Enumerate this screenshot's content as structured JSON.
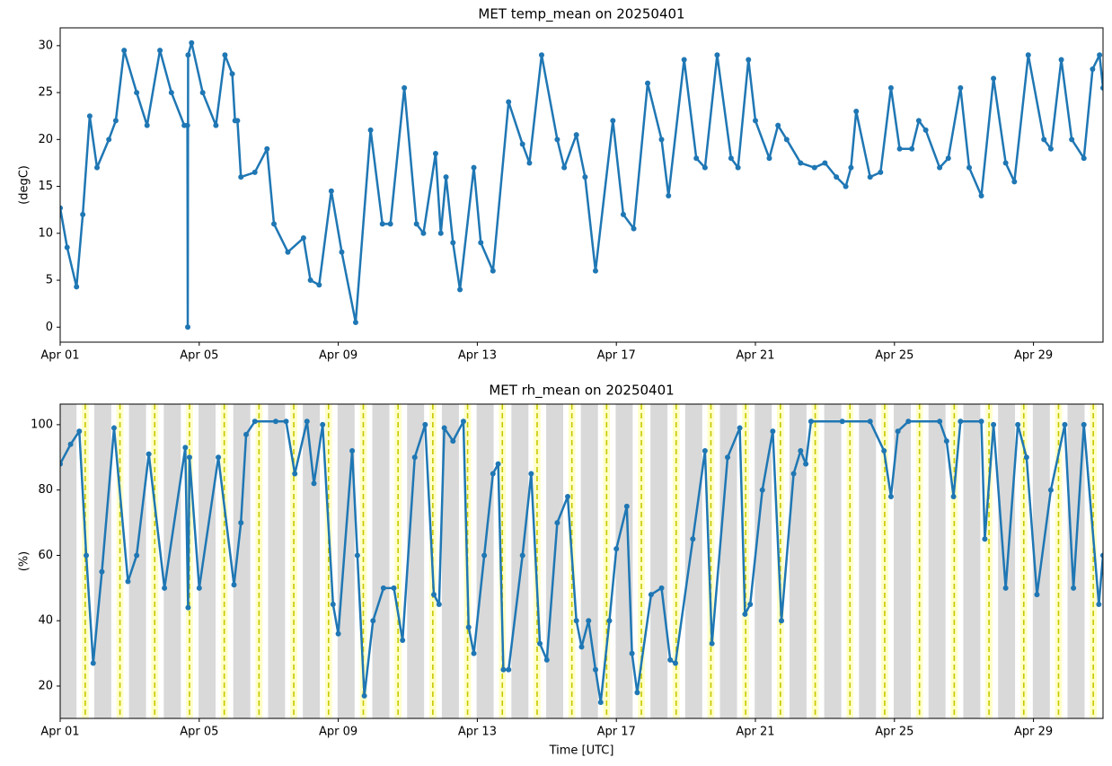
{
  "chart_data": [
    {
      "type": "line",
      "title": "MET temp_mean on 20250401",
      "ylabel": "(degC)",
      "color": "#1f77b4",
      "x": [
        0,
        0.2,
        0.47,
        0.65,
        0.85,
        1.06,
        1.4,
        1.6,
        1.84,
        2.2,
        2.5,
        2.87,
        3.2,
        3.57,
        3.66,
        3.67,
        3.68,
        3.78,
        4.1,
        4.48,
        4.74,
        4.95,
        5.03,
        5.1,
        5.2,
        5.6,
        5.95,
        6.15,
        6.55,
        7,
        7.2,
        7.45,
        7.8,
        8.1,
        8.5,
        8.93,
        9.27,
        9.5,
        9.9,
        10.25,
        10.45,
        10.8,
        10.95,
        11.1,
        11.3,
        11.5,
        11.9,
        12.1,
        12.45,
        12.9,
        13.3,
        13.5,
        13.85,
        14.3,
        14.5,
        14.85,
        15.1,
        15.4,
        15.9,
        16.2,
        16.5,
        16.9,
        17.3,
        17.5,
        17.95,
        18.3,
        18.55,
        18.9,
        19.3,
        19.5,
        19.8,
        20,
        20.4,
        20.65,
        20.9,
        21.3,
        21.7,
        22,
        22.33,
        22.6,
        22.75,
        22.9,
        23.3,
        23.6,
        23.9,
        24.15,
        24.5,
        24.7,
        24.9,
        25.3,
        25.55,
        25.9,
        26.15,
        26.5,
        26.85,
        27.2,
        27.45,
        27.85,
        28.3,
        28.5,
        28.8,
        29.1,
        29.45,
        29.7,
        29.9,
        30
      ],
      "values": [
        12.7,
        8.5,
        4.3,
        12,
        22.5,
        17,
        20,
        22,
        29.5,
        25,
        21.5,
        29.5,
        25,
        21.5,
        21.5,
        0,
        29,
        30.3,
        25,
        21.5,
        29,
        27,
        22,
        22,
        16,
        16.5,
        19,
        11,
        8,
        9.5,
        5,
        4.5,
        14.5,
        8,
        0.5,
        21,
        11,
        11,
        25.5,
        11,
        10,
        18.5,
        10,
        16,
        9,
        4,
        17,
        9,
        6,
        24,
        19.5,
        17.5,
        29,
        20,
        17,
        20.5,
        16,
        6,
        22,
        12,
        10.5,
        26,
        20,
        14,
        28.5,
        18,
        17,
        29,
        18,
        17,
        28.5,
        22,
        18,
        21.5,
        20,
        17.5,
        17,
        17.5,
        16,
        15,
        17,
        23,
        16,
        16.5,
        25.5,
        19,
        19,
        22,
        21,
        17,
        18,
        25.5,
        17,
        14,
        26.5,
        17.5,
        15.5,
        29,
        20,
        19,
        28.5,
        20,
        18,
        27.5,
        29,
        25.5
      ],
      "xlim": [
        0,
        30
      ],
      "xticks": [
        {
          "value": 0,
          "label": "Apr 01"
        },
        {
          "value": 4,
          "label": "Apr 05"
        },
        {
          "value": 8,
          "label": "Apr 09"
        },
        {
          "value": 12,
          "label": "Apr 13"
        },
        {
          "value": 16,
          "label": "Apr 17"
        },
        {
          "value": 20,
          "label": "Apr 21"
        },
        {
          "value": 24,
          "label": "Apr 25"
        },
        {
          "value": 28,
          "label": "Apr 29"
        }
      ],
      "ylim": [
        -1.6,
        31.9
      ],
      "yticks": [
        0,
        5,
        10,
        15,
        20,
        25,
        30
      ]
    },
    {
      "type": "line",
      "title": "MET rh_mean on 20250401",
      "ylabel": "(%)",
      "xlabel": "Time [UTC]",
      "color": "#1f77b4",
      "x": [
        0,
        0.3,
        0.55,
        0.75,
        0.95,
        1.2,
        1.55,
        1.95,
        2.2,
        2.55,
        3,
        3.6,
        3.68,
        3.72,
        4,
        4.55,
        5,
        5.2,
        5.35,
        5.6,
        6.2,
        6.5,
        6.75,
        7.1,
        7.3,
        7.55,
        7.85,
        8,
        8.4,
        8.55,
        8.75,
        9,
        9.3,
        9.6,
        9.85,
        10.2,
        10.5,
        10.75,
        10.9,
        11.05,
        11.3,
        11.6,
        11.75,
        11.9,
        12.2,
        12.45,
        12.6,
        12.75,
        12.9,
        13.3,
        13.55,
        13.8,
        14,
        14.3,
        14.6,
        14.85,
        15,
        15.2,
        15.4,
        15.55,
        15.8,
        16,
        16.3,
        16.45,
        16.6,
        17,
        17.3,
        17.55,
        17.7,
        18.2,
        18.55,
        18.75,
        19.2,
        19.55,
        19.7,
        19.85,
        20.2,
        20.5,
        20.75,
        21.1,
        21.3,
        21.45,
        21.6,
        22.5,
        23.3,
        23.7,
        23.9,
        24.1,
        24.4,
        25.3,
        25.5,
        25.7,
        25.9,
        26.5,
        26.6,
        26.85,
        27.2,
        27.55,
        27.8,
        28.1,
        28.5,
        28.9,
        29.15,
        29.45,
        29.88,
        30
      ],
      "values": [
        88,
        94,
        98,
        60,
        27,
        55,
        99,
        52,
        60,
        91,
        50,
        93,
        44,
        90,
        50,
        90,
        51,
        70,
        97,
        101,
        101,
        101,
        85,
        101,
        82,
        100,
        45,
        36,
        92,
        60,
        17,
        40,
        50,
        50,
        34,
        90,
        100,
        48,
        45,
        99,
        95,
        101,
        38,
        30,
        60,
        85,
        88,
        25,
        25,
        60,
        85,
        33,
        28,
        70,
        78,
        40,
        32,
        40,
        25,
        15,
        40,
        62,
        75,
        30,
        18,
        48,
        50,
        28,
        27,
        65,
        92,
        33,
        90,
        99,
        42,
        45,
        80,
        98,
        40,
        85,
        92,
        88,
        101,
        101,
        101,
        92,
        78,
        98,
        101,
        101,
        95,
        78,
        101,
        101,
        65,
        100,
        50,
        100,
        90,
        48,
        80,
        100,
        50,
        100,
        45,
        60
      ],
      "xlim": [
        0,
        30
      ],
      "xticks": [
        {
          "value": 0,
          "label": "Apr 01"
        },
        {
          "value": 4,
          "label": "Apr 05"
        },
        {
          "value": 8,
          "label": "Apr 09"
        },
        {
          "value": 12,
          "label": "Apr 13"
        },
        {
          "value": 16,
          "label": "Apr 17"
        },
        {
          "value": 20,
          "label": "Apr 21"
        },
        {
          "value": 24,
          "label": "Apr 25"
        },
        {
          "value": 28,
          "label": "Apr 29"
        }
      ],
      "ylim": [
        10.1,
        106.3
      ],
      "yticks": [
        20,
        40,
        60,
        80,
        100
      ],
      "night_color": "#d9d9d9",
      "highlight_color": "#ffffc8",
      "noon_color": "#c8c800",
      "night": [
        [
          -0.02,
          0.47
        ],
        [
          0.98,
          1.47
        ],
        [
          1.98,
          2.47
        ],
        [
          2.98,
          3.47
        ],
        [
          3.98,
          4.47
        ],
        [
          4.98,
          5.47
        ],
        [
          5.98,
          6.47
        ],
        [
          6.98,
          7.47
        ],
        [
          7.98,
          8.47
        ],
        [
          8.98,
          9.47
        ],
        [
          9.98,
          10.47
        ],
        [
          10.98,
          11.47
        ],
        [
          11.98,
          12.47
        ],
        [
          12.98,
          13.47
        ],
        [
          13.98,
          14.47
        ],
        [
          14.98,
          15.47
        ],
        [
          15.98,
          16.47
        ],
        [
          16.98,
          17.47
        ],
        [
          17.98,
          18.47
        ],
        [
          18.98,
          19.47
        ],
        [
          19.98,
          20.47
        ],
        [
          20.98,
          21.47
        ],
        [
          21.98,
          22.47
        ],
        [
          22.98,
          23.47
        ],
        [
          23.98,
          24.47
        ],
        [
          24.98,
          25.47
        ],
        [
          25.98,
          26.47
        ],
        [
          26.98,
          27.47
        ],
        [
          27.98,
          28.47
        ],
        [
          28.98,
          29.47
        ]
      ],
      "highlight": [
        [
          0.62,
          0.82
        ],
        [
          1.62,
          1.82
        ],
        [
          2.62,
          2.82
        ],
        [
          3.62,
          3.82
        ],
        [
          4.62,
          4.82
        ],
        [
          5.62,
          5.82
        ],
        [
          6.62,
          6.82
        ],
        [
          7.62,
          7.82
        ],
        [
          8.62,
          8.82
        ],
        [
          9.62,
          9.82
        ],
        [
          10.62,
          10.82
        ],
        [
          11.62,
          11.82
        ],
        [
          12.62,
          12.82
        ],
        [
          13.62,
          13.82
        ],
        [
          14.62,
          14.82
        ],
        [
          15.62,
          15.82
        ],
        [
          16.62,
          16.82
        ],
        [
          17.62,
          17.82
        ],
        [
          18.62,
          18.82
        ],
        [
          19.62,
          19.82
        ],
        [
          20.62,
          20.82
        ],
        [
          21.62,
          21.82
        ],
        [
          22.62,
          22.82
        ],
        [
          23.62,
          23.82
        ],
        [
          24.62,
          24.82
        ],
        [
          25.62,
          25.82
        ],
        [
          26.62,
          26.82
        ],
        [
          27.62,
          27.82
        ],
        [
          28.62,
          28.82
        ],
        [
          29.62,
          29.82
        ]
      ],
      "noon": [
        0.72,
        1.72,
        2.72,
        3.72,
        4.72,
        5.72,
        6.72,
        7.72,
        8.72,
        9.72,
        10.72,
        11.72,
        12.72,
        13.72,
        14.72,
        15.72,
        16.72,
        17.72,
        18.72,
        19.72,
        20.72,
        21.72,
        22.72,
        23.72,
        24.72,
        25.72,
        26.72,
        27.72,
        28.72,
        29.72
      ]
    }
  ]
}
